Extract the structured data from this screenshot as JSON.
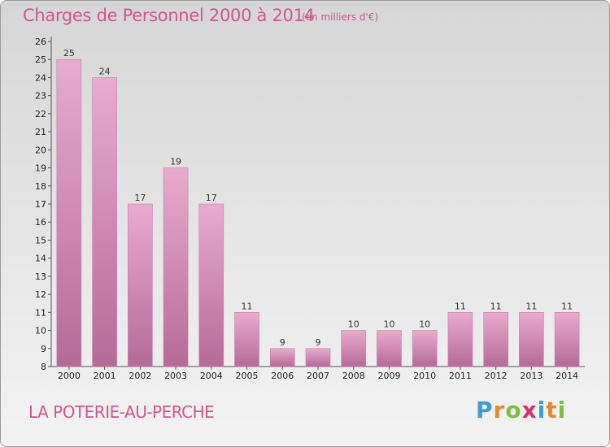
{
  "title": "Charges de Personnel 2000 à 2014",
  "subtitle": "(en milliers d'€)",
  "commune": "LA POTERIE-AU-PERCHE",
  "logo": {
    "letters": [
      "P",
      "r",
      "o",
      "x",
      "i",
      "t",
      "i"
    ],
    "colors": [
      "#3a9bd8",
      "#e58a2b",
      "#7cbf3f",
      "#d6336c",
      "#3a9bd8",
      "#e58a2b",
      "#7cbf3f"
    ]
  },
  "colors": {
    "accent": "#d1558d",
    "bar_top": "#e9abd0",
    "bar_bottom": "#b56a98",
    "bar_edge": "#c77dab"
  },
  "chart_data": {
    "type": "bar",
    "categories": [
      "2000",
      "2001",
      "2002",
      "2003",
      "2004",
      "2005",
      "2006",
      "2007",
      "2008",
      "2009",
      "2010",
      "2011",
      "2012",
      "2013",
      "2014"
    ],
    "values": [
      25,
      24,
      17,
      19,
      17,
      11,
      9,
      9,
      10,
      10,
      10,
      11,
      11,
      11,
      11
    ],
    "value_labels": [
      "25",
      "24",
      "17",
      "19",
      "17",
      "11",
      "9",
      "9",
      "10",
      "10",
      "10",
      "11",
      "11",
      "11",
      "11"
    ],
    "ylim": [
      8,
      26
    ],
    "yticks": [
      "8",
      "9",
      "10",
      "11",
      "12",
      "13",
      "14",
      "15",
      "16",
      "17",
      "18",
      "19",
      "20",
      "21",
      "22",
      "23",
      "24",
      "25",
      "26"
    ],
    "title": "Charges de Personnel 2000 à 2014",
    "xlabel": "",
    "ylabel": "",
    "grid": false,
    "legend": "none"
  }
}
